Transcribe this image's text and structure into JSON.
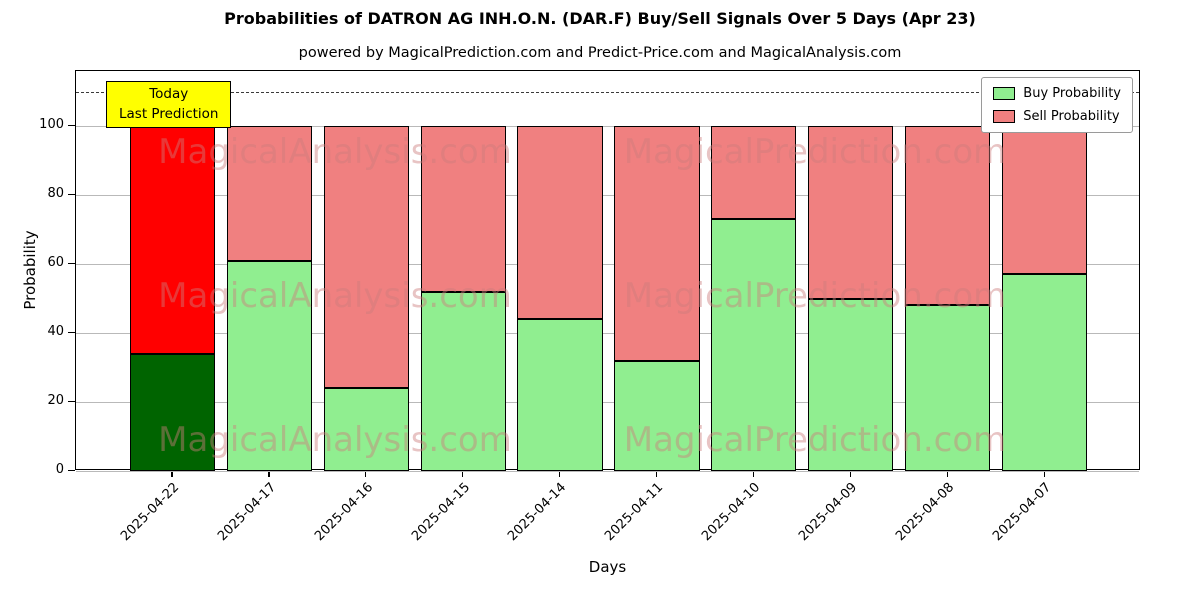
{
  "chart_data": {
    "type": "bar",
    "stacked": true,
    "title": "Probabilities of DATRON AG INH.O.N. (DAR.F) Buy/Sell Signals Over 5 Days (Apr 23)",
    "subtitle": "powered by MagicalPrediction.com and Predict-Price.com and MagicalAnalysis.com",
    "xlabel": "Days",
    "ylabel": "Probability",
    "categories": [
      "2025-04-22",
      "2025-04-17",
      "2025-04-16",
      "2025-04-15",
      "2025-04-14",
      "2025-04-11",
      "2025-04-10",
      "2025-04-09",
      "2025-04-08",
      "2025-04-07"
    ],
    "series": [
      {
        "name": "Buy Probability",
        "color": "#90EE90",
        "values": [
          34,
          61,
          24,
          52,
          44,
          32,
          73,
          50,
          48,
          57
        ]
      },
      {
        "name": "Sell Probability",
        "color": "#F08080",
        "values": [
          66,
          39,
          76,
          48,
          56,
          68,
          27,
          50,
          52,
          43
        ]
      }
    ],
    "highlight_first_bar": {
      "buy_color": "#006400",
      "sell_color": "#FF0000"
    },
    "bar_edge_color": "#000000",
    "yticks": [
      0,
      20,
      40,
      60,
      80,
      100
    ],
    "ylim": [
      0,
      116
    ],
    "dashed_line_y": 110,
    "grid": true,
    "legend_position": "upper right"
  },
  "annotation": {
    "line1": "Today",
    "line2": "Last Prediction",
    "bg_color": "#FFFF00"
  },
  "watermarks": {
    "left_text": "MagicalAnalysis.com",
    "right_text": "MagicalPrediction.com"
  }
}
